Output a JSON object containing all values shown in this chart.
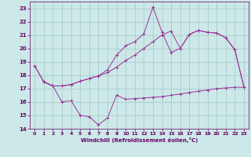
{
  "bg_color": "#cce8e8",
  "grid_color": "#aacccc",
  "line_color": "#993399",
  "xlabel": "Windchill (Refroidissement éolien,°C)",
  "xlabel_color": "#660066",
  "tick_color": "#660066",
  "ylim": [
    14,
    23.5
  ],
  "xlim": [
    -0.5,
    23.5
  ],
  "yticks": [
    14,
    15,
    16,
    17,
    18,
    19,
    20,
    21,
    22,
    23
  ],
  "xticks": [
    0,
    1,
    2,
    3,
    4,
    5,
    6,
    7,
    8,
    9,
    10,
    11,
    12,
    13,
    14,
    15,
    16,
    17,
    18,
    19,
    20,
    21,
    22,
    23
  ],
  "line1_x": [
    0,
    1,
    2,
    3,
    4,
    5,
    6,
    7,
    8,
    9,
    10,
    11,
    12,
    13,
    14,
    15,
    16,
    17,
    18,
    19,
    20,
    21,
    22,
    23
  ],
  "line1_y": [
    18.7,
    17.5,
    17.2,
    17.2,
    17.3,
    17.55,
    17.75,
    17.95,
    18.2,
    18.6,
    19.1,
    19.5,
    20.0,
    20.5,
    21.0,
    21.3,
    20.0,
    21.05,
    21.35,
    21.2,
    21.15,
    20.8,
    19.9,
    17.1
  ],
  "line2_x": [
    0,
    1,
    2,
    3,
    4,
    5,
    6,
    7,
    8,
    9,
    10,
    11,
    12,
    13,
    14,
    15,
    16,
    17,
    18,
    19,
    20,
    21,
    22,
    23
  ],
  "line2_y": [
    18.7,
    17.5,
    17.2,
    17.2,
    17.3,
    17.55,
    17.75,
    17.95,
    18.4,
    19.5,
    20.2,
    20.5,
    21.1,
    23.1,
    21.2,
    19.7,
    20.0,
    21.05,
    21.35,
    21.2,
    21.15,
    20.8,
    19.9,
    17.1
  ],
  "line3_x": [
    1,
    2,
    3,
    4,
    5,
    6,
    7,
    8,
    9,
    10,
    11,
    12,
    13,
    14,
    15,
    16,
    17,
    18,
    19,
    20,
    21,
    22,
    23
  ],
  "line3_y": [
    17.5,
    17.2,
    16.0,
    16.1,
    15.0,
    14.9,
    14.3,
    14.8,
    16.5,
    16.2,
    16.25,
    16.3,
    16.35,
    16.4,
    16.5,
    16.6,
    16.7,
    16.8,
    16.9,
    17.0,
    17.05,
    17.1,
    17.1
  ]
}
